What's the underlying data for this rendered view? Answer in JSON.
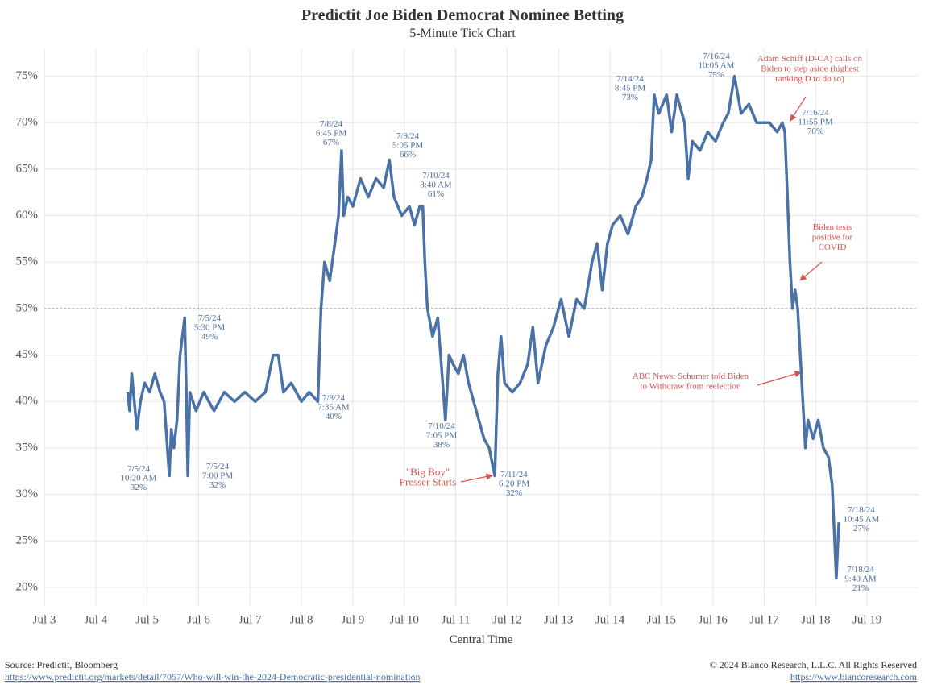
{
  "chart_data": {
    "type": "line",
    "title": "Predictit Joe Biden Democrat Nominee Betting",
    "subtitle": "5-Minute Tick Chart",
    "x_label": "Central Time",
    "color": "#4a72a6",
    "x": [
      4.62,
      4.66,
      4.7,
      4.75,
      4.8,
      4.87,
      4.95,
      5.05,
      5.15,
      5.25,
      5.33,
      5.38,
      5.43,
      5.47,
      5.52,
      5.58,
      5.64,
      5.73,
      5.76,
      5.79,
      5.83,
      5.95,
      6.1,
      6.3,
      6.5,
      6.7,
      6.9,
      7.1,
      7.3,
      7.45,
      7.55,
      7.65,
      7.8,
      8.0,
      8.15,
      8.32,
      8.38,
      8.45,
      8.55,
      8.65,
      8.72,
      8.78,
      8.82,
      8.9,
      9.0,
      9.15,
      9.3,
      9.45,
      9.6,
      9.71,
      9.8,
      9.95,
      10.1,
      10.2,
      10.3,
      10.36,
      10.4,
      10.45,
      10.55,
      10.65,
      10.72,
      10.8,
      10.87,
      10.95,
      11.05,
      11.15,
      11.25,
      11.35,
      11.45,
      11.55,
      11.65,
      11.76,
      11.82,
      11.88,
      11.95,
      12.1,
      12.25,
      12.4,
      12.5,
      12.6,
      12.75,
      12.9,
      13.05,
      13.2,
      13.35,
      13.5,
      13.65,
      13.75,
      13.85,
      13.95,
      14.05,
      14.2,
      14.35,
      14.5,
      14.62,
      14.72,
      14.8,
      14.86,
      14.95,
      15.1,
      15.2,
      15.3,
      15.45,
      15.52,
      15.6,
      15.75,
      15.9,
      16.05,
      16.2,
      16.3,
      16.42,
      16.55,
      16.7,
      16.85,
      17.0,
      17.1,
      17.25,
      17.35,
      17.4,
      17.45,
      17.5,
      17.55,
      17.6,
      17.65,
      17.7,
      17.75,
      17.8,
      17.85,
      17.95,
      18.05,
      18.15,
      18.25,
      18.32,
      18.4,
      18.45
    ],
    "values": [
      41,
      39,
      43,
      40,
      37,
      40,
      42,
      41,
      43,
      41,
      40,
      36,
      32,
      37,
      35,
      38,
      45,
      49,
      41,
      32,
      41,
      39,
      41,
      39,
      41,
      40,
      41,
      40,
      41,
      45,
      45,
      41,
      42,
      40,
      41,
      40,
      50,
      55,
      53,
      57,
      60,
      67,
      60,
      62,
      61,
      64,
      62,
      64,
      63,
      66,
      62,
      60,
      61,
      59,
      61,
      61,
      55,
      50,
      47,
      49,
      44,
      38,
      45,
      44,
      43,
      45,
      42,
      40,
      38,
      36,
      35,
      32,
      43,
      47,
      42,
      41,
      42,
      44,
      48,
      42,
      46,
      48,
      51,
      47,
      51,
      50,
      55,
      57,
      52,
      57,
      59,
      60,
      58,
      61,
      62,
      64,
      66,
      73,
      71,
      73,
      69,
      73,
      70,
      64,
      68,
      67,
      69,
      68,
      70,
      71,
      75,
      71,
      72,
      70,
      70,
      70,
      69,
      70,
      69,
      62,
      55,
      50,
      52,
      50,
      45,
      40,
      35,
      38,
      36,
      38,
      35,
      34,
      31,
      21,
      27
    ],
    "xlim": [
      3,
      20
    ],
    "xticks": [
      {
        "value": 3,
        "label": "Jul 3"
      },
      {
        "value": 4,
        "label": "Jul 4"
      },
      {
        "value": 5,
        "label": "Jul 5"
      },
      {
        "value": 6,
        "label": "Jul 6"
      },
      {
        "value": 7,
        "label": "Jul 7"
      },
      {
        "value": 8,
        "label": "Jul 8"
      },
      {
        "value": 9,
        "label": "Jul 9"
      },
      {
        "value": 10,
        "label": "Jul 10"
      },
      {
        "value": 11,
        "label": "Jul 11"
      },
      {
        "value": 12,
        "label": "Jul 12"
      },
      {
        "value": 13,
        "label": "Jul 13"
      },
      {
        "value": 14,
        "label": "Jul 14"
      },
      {
        "value": 15,
        "label": "Jul 15"
      },
      {
        "value": 16,
        "label": "Jul 16"
      },
      {
        "value": 17,
        "label": "Jul 17"
      },
      {
        "value": 18,
        "label": "Jul 18"
      },
      {
        "value": 19,
        "label": "Jul 19"
      }
    ],
    "ylim": [
      18,
      78
    ],
    "yticks": [
      {
        "value": 20,
        "label": "20%"
      },
      {
        "value": 25,
        "label": "25%"
      },
      {
        "value": 30,
        "label": "30%"
      },
      {
        "value": 35,
        "label": "35%"
      },
      {
        "value": 40,
        "label": "40%"
      },
      {
        "value": 45,
        "label": "45%"
      },
      {
        "value": 50,
        "label": "50%"
      },
      {
        "value": 55,
        "label": "55%"
      },
      {
        "value": 60,
        "label": "60%"
      },
      {
        "value": 65,
        "label": "65%"
      },
      {
        "value": 70,
        "label": "70%"
      },
      {
        "value": 75,
        "label": "75%"
      }
    ],
    "grid": true,
    "hline": 50,
    "annotations": [
      {
        "lines": [
          "7/5/24",
          "10:20 AM",
          "32%"
        ],
        "color": "#4a6fa0"
      },
      {
        "lines": [
          "7/5/24",
          "5:30 PM",
          "49%"
        ],
        "color": "#4a6fa0"
      },
      {
        "lines": [
          "7/5/24",
          "7:00 PM",
          "32%"
        ],
        "color": "#4a6fa0"
      },
      {
        "lines": [
          "7/8/24",
          "6:45 PM",
          "67%"
        ],
        "color": "#4a6fa0"
      },
      {
        "lines": [
          "7/8/24",
          "7:35 AM",
          "40%"
        ],
        "color": "#4a6fa0"
      },
      {
        "lines": [
          "7/9/24",
          "5:05 PM",
          "66%"
        ],
        "color": "#4a6fa0"
      },
      {
        "lines": [
          "7/10/24",
          "8:40 AM",
          "61%"
        ],
        "color": "#4a6fa0"
      },
      {
        "lines": [
          "7/10/24",
          "7:05 PM",
          "38%"
        ],
        "color": "#4a6fa0"
      },
      {
        "lines": [
          "7/11/24",
          "6:20 PM",
          "32%"
        ],
        "color": "#4a6fa0"
      },
      {
        "lines": [
          "7/14/24",
          "8:45 PM",
          "73%"
        ],
        "color": "#4a6fa0"
      },
      {
        "lines": [
          "7/16/24",
          "10:05 AM",
          "75%"
        ],
        "color": "#4a6fa0"
      },
      {
        "lines": [
          "7/16/24",
          "11:55 PM",
          "70%"
        ],
        "color": "#4a6fa0"
      },
      {
        "lines": [
          "7/18/24",
          "10:45 AM",
          "27%"
        ],
        "color": "#4a6fa0"
      },
      {
        "lines": [
          "7/18/24",
          "9:40 AM",
          "21%"
        ],
        "color": "#4a6fa0"
      },
      {
        "lines": [
          "Adam Schiff (D-CA) calls on",
          "Biden to step aside (highest",
          "ranking D to do so)"
        ],
        "color": "#d9534f"
      },
      {
        "lines": [
          "Biden tests",
          "positive for",
          "COVID"
        ],
        "color": "#d9534f"
      },
      {
        "lines": [
          "ABC News: Schumer told Biden",
          "to Withdraw from reelection"
        ],
        "color": "#d9534f"
      },
      {
        "lines": [
          "\"Big Boy\"",
          "Presser Starts"
        ],
        "color": "#d9534f"
      }
    ]
  },
  "footer": {
    "source": "Source: Predictit, Bloomberg",
    "source_url": "https://www.predictit.org/markets/detail/7057/Who-will-win-the-2024-Democratic-presidential-nomination",
    "copyright": "© 2024 Bianco Research, L.L.C. All Rights Reserved",
    "site_url": "https://www.biancoresearch.com"
  }
}
